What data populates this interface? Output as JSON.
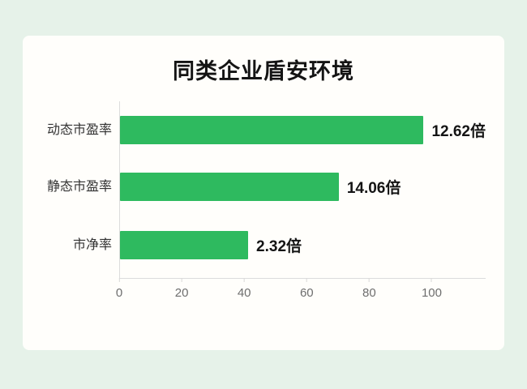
{
  "page": {
    "background_color": "#e6f2e9",
    "card_background_color": "#fffefb"
  },
  "chart_data": {
    "type": "bar",
    "orientation": "horizontal",
    "title": "同类企业盾安环境",
    "categories": [
      "动态市盈率",
      "静态市盈率",
      "市净率"
    ],
    "values": [
      12.62,
      14.06,
      2.32
    ],
    "value_unit": "倍",
    "value_labels": [
      "12.62倍",
      "14.06倍",
      "2.32倍"
    ],
    "bar_axis_lengths": [
      98,
      70,
      41
    ],
    "xlim": [
      0,
      117
    ],
    "xticks": [
      "0",
      "20",
      "40",
      "60",
      "80",
      "100"
    ],
    "bar_color": "#2eba5f",
    "axis_color": "#dcdcdc",
    "grid": false,
    "legend_position": "none"
  }
}
